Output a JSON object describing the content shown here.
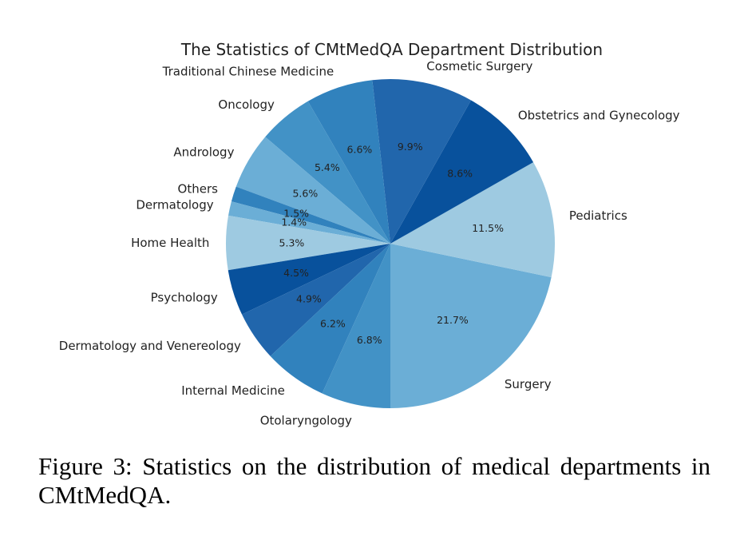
{
  "chart_data": {
    "type": "pie",
    "title": "The Statistics of CMtMedQA Department Distribution",
    "slices": [
      {
        "label": "Surgery",
        "value": 21.7,
        "pct_label": "21.7%",
        "color": "#6baed6"
      },
      {
        "label": "Pediatrics",
        "value": 11.5,
        "pct_label": "11.5%",
        "color": "#9ecae1"
      },
      {
        "label": "Obstetrics and Gynecology",
        "value": 8.6,
        "pct_label": "8.6%",
        "color": "#08519c"
      },
      {
        "label": "Cosmetic Surgery",
        "value": 9.9,
        "pct_label": "9.9%",
        "color": "#2166ac"
      },
      {
        "label": "Traditional Chinese Medicine",
        "value": 6.6,
        "pct_label": "6.6%",
        "color": "#3182bd"
      },
      {
        "label": "Oncology",
        "value": 5.4,
        "pct_label": "5.4%",
        "color": "#4292c6"
      },
      {
        "label": "Andrology",
        "value": 5.6,
        "pct_label": "5.6%",
        "color": "#6baed6"
      },
      {
        "label": "Others",
        "value": 1.5,
        "pct_label": "1.5%",
        "color": "#3182bd"
      },
      {
        "label": "Dermatology",
        "value": 1.4,
        "pct_label": "1.4%",
        "color": "#6baed6"
      },
      {
        "label": "Home Health",
        "value": 5.3,
        "pct_label": "5.3%",
        "color": "#9ecae1"
      },
      {
        "label": "Psychology",
        "value": 4.5,
        "pct_label": "4.5%",
        "color": "#08519c"
      },
      {
        "label": "Dermatology and Venereology",
        "value": 4.9,
        "pct_label": "4.9%",
        "color": "#2166ac"
      },
      {
        "label": "Internal Medicine",
        "value": 6.2,
        "pct_label": "6.2%",
        "color": "#3182bd"
      },
      {
        "label": "Otolaryngology",
        "value": 6.8,
        "pct_label": "6.8%",
        "color": "#4292c6"
      }
    ],
    "start": "bottom",
    "direction": "counterclockwise"
  },
  "caption": "Figure 3: Statistics on the distribution of medical departments in CMtMedQA."
}
